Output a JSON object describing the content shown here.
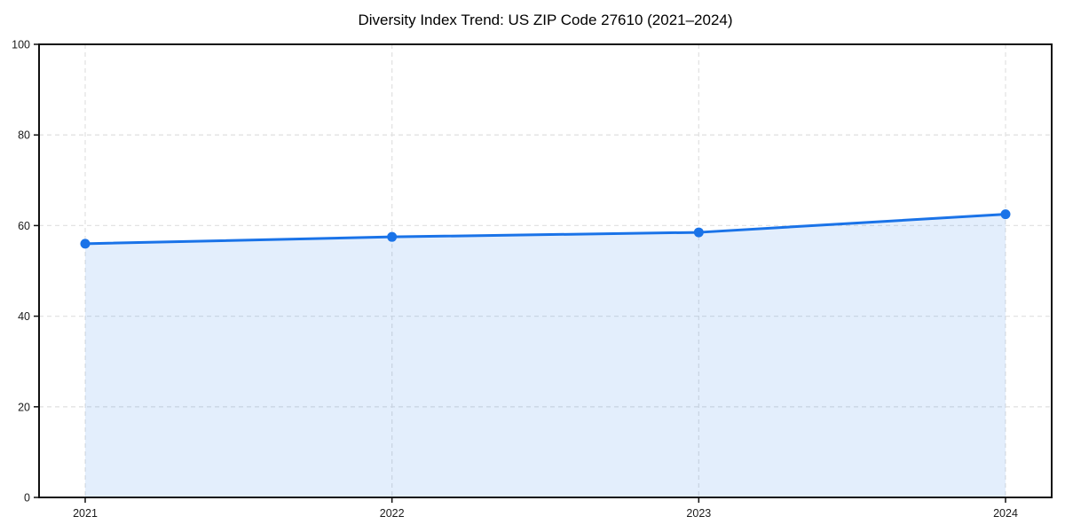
{
  "chart_data": {
    "type": "line",
    "title": "Diversity Index Trend: US ZIP Code 27610 (2021–2024)",
    "x": [
      "2021",
      "2022",
      "2023",
      "2024"
    ],
    "series": [
      {
        "name": "Diversity Index",
        "values": [
          56,
          57.5,
          58.5,
          62.5
        ]
      }
    ],
    "xlabel": "",
    "ylabel": "",
    "ylim": [
      0,
      100
    ],
    "yticks": [
      0,
      20,
      40,
      60,
      80,
      100
    ],
    "grid": true,
    "grid_style": "dashed",
    "legend_position": "none",
    "area_fill": true,
    "marker": "circle",
    "colors": {
      "line": "#1a73e8",
      "marker": "#1a73e8",
      "area_fill_opacity": 0.12,
      "grid": "#e3e3e3",
      "spine": "#111111",
      "tick_text": "#1a1a1a",
      "background": "#ffffff"
    }
  }
}
